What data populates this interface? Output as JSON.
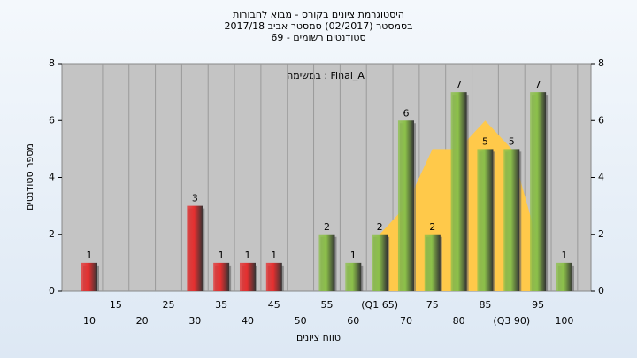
{
  "chart_data": {
    "type": "bar",
    "title": [
      "היסטוגרמת ציונים בקורס - מבוא לחבורות",
      "בסמסטר  (02/2017)  סמסטר אביב 2017/18",
      "סטודנטים רשומים - 69"
    ],
    "annotation": "במשימה : Final_A",
    "y_label": "מספר סטודנטים",
    "x_label": "טווח ציונים",
    "categories": [
      "10",
      "15",
      "20",
      "25",
      "30",
      "35",
      "40",
      "45",
      "50",
      "55",
      "60",
      "(Q1 65)",
      "70",
      "75",
      "80",
      "85",
      "(Q3 90)",
      "95",
      "100"
    ],
    "series": [
      {
        "values": [
          1,
          0,
          0,
          0,
          3,
          1,
          1,
          1,
          0,
          2,
          1,
          2,
          6,
          2,
          7,
          5,
          5,
          7,
          1
        ],
        "colors": [
          "#e53030",
          "#e53030",
          "#e53030",
          "#e53030",
          "#e53030",
          "#e53030",
          "#e53030",
          "#e53030",
          "#e53030",
          "#8cc04a",
          "#8cc04a",
          "#8cc04a",
          "#8cc04a",
          "#8cc04a",
          "#8cc04a",
          "#8cc04a",
          "#8cc04a",
          "#8cc04a",
          "#8cc04a"
        ]
      },
      {
        "type": "area",
        "color": "#ffc94a",
        "values": [
          null,
          null,
          null,
          null,
          null,
          null,
          null,
          null,
          null,
          null,
          null,
          2,
          3,
          5,
          5,
          6,
          5,
          1.7,
          null
        ]
      }
    ],
    "ylim": [
      0,
      8
    ],
    "yticks": [
      0,
      2,
      4,
      6,
      8
    ],
    "y2lim": [
      0,
      8
    ],
    "y2ticks": [
      0,
      2,
      4,
      6,
      8
    ]
  }
}
